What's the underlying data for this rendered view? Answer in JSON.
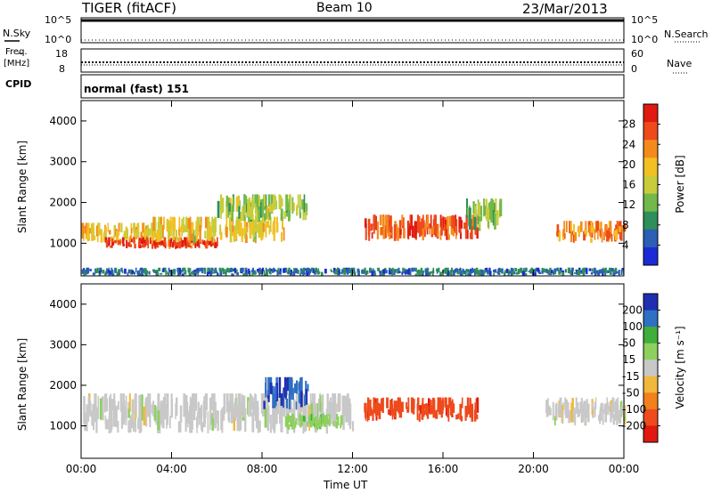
{
  "header": {
    "radar": "TIGER (fitACF)",
    "beam": "Beam 10",
    "date": "23/Mar/2013"
  },
  "left_labels": {
    "nsky": "N.Sky",
    "freq_top": "Freq.",
    "freq_units": "[MHz]",
    "cpid": "CPID"
  },
  "right_labels": {
    "nsearch": "N.Search",
    "nave": "Nave"
  },
  "cpid_text": "normal (fast) 151",
  "nsky_ticks": [
    "10^5",
    "10^0"
  ],
  "nsearch_ticks": [
    "10^5",
    "10^0"
  ],
  "freq_ticks": [
    "18",
    "8"
  ],
  "nave_ticks": [
    "60",
    "0"
  ],
  "xlabel": "Time UT",
  "chart_data": [
    {
      "type": "heatmap",
      "title": "",
      "x_ticks": [
        "00:00",
        "04:00",
        "08:00",
        "12:00",
        "16:00",
        "20:00",
        "00:00"
      ],
      "xlim_hours": [
        0,
        24
      ],
      "ylabel": "Slant Range [km]",
      "ylim": [
        200,
        4500
      ],
      "y_ticks": [
        1000,
        2000,
        3000,
        4000
      ],
      "colorbar": {
        "label": "Power [dB]",
        "ticks": [
          "28",
          "24",
          "20",
          "16",
          "12",
          "8",
          "4"
        ],
        "range": [
          0,
          30
        ]
      },
      "colorscale": [
        "#1a2bd6",
        "#2a5fb4",
        "#2e8f5a",
        "#72b84a",
        "#c9cc3a",
        "#f2c022",
        "#f58a1c",
        "#ee4a1c",
        "#e01a10"
      ],
      "bands": [
        {
          "t0": 0.0,
          "t1": 3.0,
          "r0": 1000,
          "r1": 1500,
          "value": 18
        },
        {
          "t0": 1.0,
          "t1": 6.0,
          "r0": 850,
          "r1": 1150,
          "value": 26
        },
        {
          "t0": 3.0,
          "t1": 9.0,
          "r0": 1000,
          "r1": 1650,
          "value": 17
        },
        {
          "t0": 6.0,
          "t1": 10.0,
          "r0": 1500,
          "r1": 2200,
          "value": 13
        },
        {
          "t0": 12.5,
          "t1": 17.5,
          "r0": 1050,
          "r1": 1700,
          "value": 25
        },
        {
          "t0": 17.0,
          "t1": 18.5,
          "r0": 1300,
          "r1": 2100,
          "value": 12
        },
        {
          "t0": 21.0,
          "t1": 24.0,
          "r0": 1000,
          "r1": 1550,
          "value": 22
        },
        {
          "t0": 0.0,
          "t1": 24.0,
          "r0": 200,
          "r1": 400,
          "value": 6
        }
      ]
    },
    {
      "type": "heatmap",
      "title": "",
      "x_ticks": [
        "00:00",
        "04:00",
        "08:00",
        "12:00",
        "16:00",
        "20:00",
        "00:00"
      ],
      "xlim_hours": [
        0,
        24
      ],
      "ylabel": "Slant Range [km]",
      "ylim": [
        200,
        4500
      ],
      "y_ticks": [
        1000,
        2000,
        3000,
        4000
      ],
      "colorbar": {
        "label": "Velocity [m s⁻¹]",
        "ticks": [
          "200",
          "100",
          "50",
          "15",
          "-15",
          "-50",
          "-100",
          "-200"
        ],
        "range": [
          -250,
          250
        ]
      },
      "colorscale": [
        "#1f2fb0",
        "#2f6fc4",
        "#3fae3a",
        "#8ed05e",
        "#c8c8c8",
        "#f2b83c",
        "#f2801c",
        "#ee4a1c",
        "#e01a10"
      ],
      "bands": [
        {
          "t0": 0.0,
          "t1": 12.0,
          "r0": 800,
          "r1": 1800,
          "value": 0
        },
        {
          "t0": 8.0,
          "t1": 10.0,
          "r0": 1400,
          "r1": 2200,
          "value": 180
        },
        {
          "t0": 9.0,
          "t1": 11.5,
          "r0": 900,
          "r1": 1300,
          "value": 60
        },
        {
          "t0": 12.5,
          "t1": 17.5,
          "r0": 1100,
          "r1": 1700,
          "value": -170
        },
        {
          "t0": 20.5,
          "t1": 24.0,
          "r0": 1000,
          "r1": 1700,
          "value": 0
        }
      ]
    }
  ]
}
